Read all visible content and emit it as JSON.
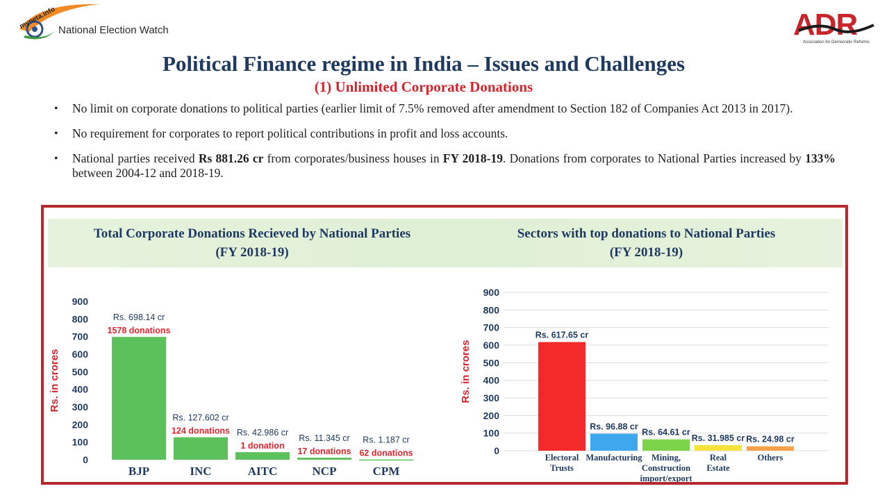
{
  "header": {
    "left_logo_text": "National Election Watch",
    "left_logo_mark": "myneta.info",
    "right_logo_text": "ADR",
    "right_logo_subtext": "Association for Democratic Reforms"
  },
  "title": "Political Finance regime in India – Issues and Challenges",
  "subtitle": "(1) Unlimited Corporate Donations",
  "bullets": [
    {
      "parts": [
        "No limit on corporate donations to political parties (earlier limit of 7.5% removed after amendment to Section 182 of Companies Act 2013 in 2017)."
      ]
    },
    {
      "parts": [
        "No requirement for corporates to report political contributions in profit and loss accounts."
      ]
    },
    {
      "parts": [
        "National parties received ",
        "Rs 881.26 cr",
        " from corporates/business houses in ",
        "FY 2018-19",
        ". Donations from corporates to National Parties increased by ",
        "133%",
        " between 2004-12 and 2018-19."
      ]
    }
  ],
  "chart_data": [
    {
      "type": "bar",
      "title": "Total Corporate Donations Recieved by National Parties (FY 2018-19)",
      "title_lines": [
        "Total Corporate Donations Recieved by National Parties",
        "(FY 2018-19)"
      ],
      "ylabel": "Rs. in crores",
      "ylim": [
        0,
        900
      ],
      "yticks": [
        0,
        100,
        200,
        300,
        400,
        500,
        600,
        700,
        800,
        900
      ],
      "categories": [
        "BJP",
        "INC",
        "AITC",
        "NCP",
        "CPM"
      ],
      "values": [
        698.14,
        127.602,
        42.986,
        11.345,
        1.187
      ],
      "value_labels": [
        "Rs. 698.14 cr",
        "Rs. 127.602 cr",
        "Rs. 42.986 cr",
        "Rs. 11.345 cr",
        "Rs. 1.187 cr"
      ],
      "donation_labels": [
        "1578 donations",
        "124 donations",
        "1 donation",
        "17 donations",
        "62 donations"
      ],
      "bar_color": "#5cc15a",
      "grid": false
    },
    {
      "type": "bar",
      "title": "Sectors with top donations to National Parties (FY 2018-19)",
      "title_lines": [
        "Sectors with top donations to National Parties",
        "(FY 2018-19)"
      ],
      "ylabel": "Rs. in crores",
      "ylim": [
        0,
        900
      ],
      "yticks": [
        0,
        100,
        200,
        300,
        400,
        500,
        600,
        700,
        800,
        900
      ],
      "categories": [
        [
          "Electoral",
          "Trusts"
        ],
        [
          "Manufacturing"
        ],
        [
          "Mining,",
          "Construction",
          "import/export"
        ],
        [
          "Real",
          "Estate"
        ],
        [
          "Others"
        ]
      ],
      "values": [
        617.65,
        96.88,
        64.61,
        31.985,
        24.98
      ],
      "value_labels": [
        "Rs. 617.65 cr",
        "Rs. 96.88 cr",
        "Rs. 64.61 cr",
        "Rs. 31.985 cr",
        "Rs. 24.98 cr"
      ],
      "colors": [
        "#f42a2a",
        "#3ea8ee",
        "#7dd34a",
        "#f7e13b",
        "#f7a04a"
      ],
      "grid": true
    }
  ],
  "colors": {
    "title": "#1f3a60",
    "subtitle": "#d6242c",
    "panel_border": "#b6292e",
    "axis_label": "#d6242c",
    "tick": "#1f3a60"
  }
}
